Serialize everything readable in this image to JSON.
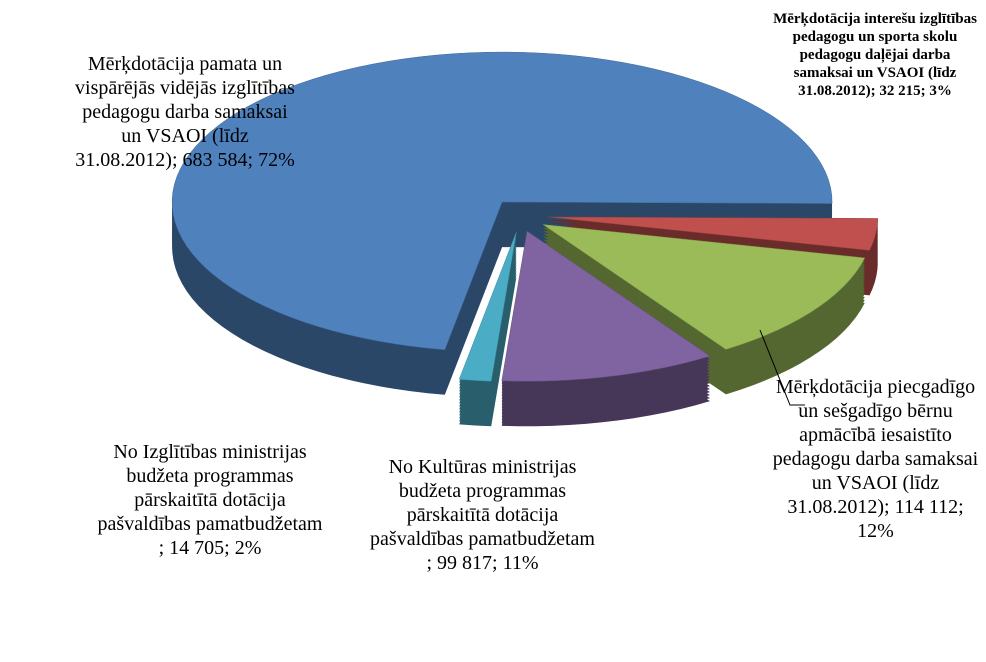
{
  "chart_data": {
    "type": "pie3d",
    "categories": [
      "Mērķdotācija pamata un vispārējās vidējās izglītības pedagogu darba samaksai un VSAOI (līdz 31.08.2012)",
      "Mērķdotācija interešu izglītības pedagogu un sporta skolu pedagogu daļējai darba samaksai un VSAOI (līdz 31.08.2012)",
      "Mērķdotācija piecgadīgo un sešgadīgo bērnu apmācībā iesaistīto pedagogu darba samaksai un VSAOI (līdz 31.08.2012)",
      "No Kultūras ministrijas budžeta programmas pārskaitītā dotācija pašvaldības pamatbudžetam ",
      "No Izglītības ministrijas budžeta programmas pārskaitītā dotācija pašvaldības pamatbudžetam "
    ],
    "values": [
      683584,
      32215,
      114112,
      99817,
      14705
    ],
    "value_labels": [
      "683 584",
      "32 215",
      "114 112",
      "99 817",
      "14 705"
    ],
    "percents": [
      72,
      3,
      12,
      11,
      2
    ],
    "percent_labels": [
      "72%",
      "3%",
      "12%",
      "11%",
      "2%"
    ],
    "label_separator": "; ",
    "colors": [
      "#4f81bd",
      "#c0504d",
      "#9bbb59",
      "#8064a2",
      "#4bacc6"
    ]
  }
}
